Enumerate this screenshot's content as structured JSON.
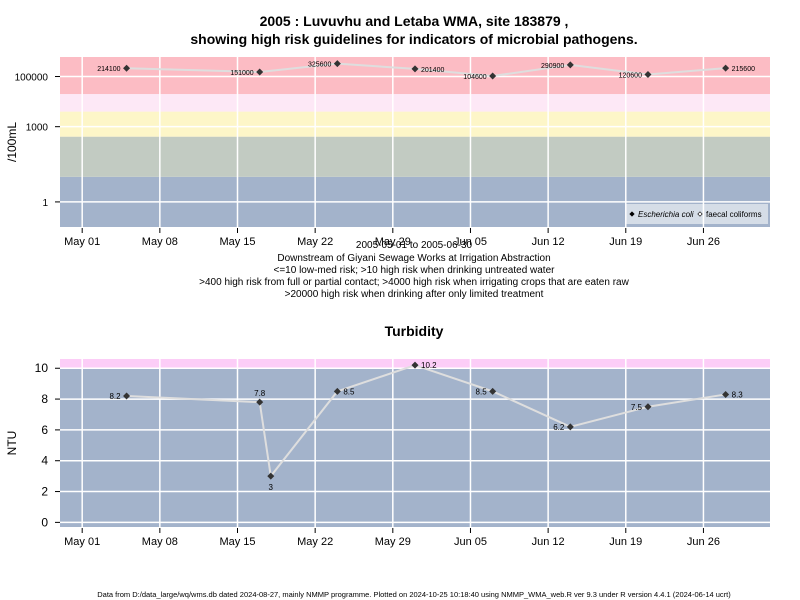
{
  "colors": {
    "band_low": "#a3b3cb",
    "band_sage": "#c2cbc2",
    "band_yellow": "#fdf6c8",
    "band_pink_light": "#fde8f6",
    "band_pink": "#fccdf7",
    "band_red": "#fcbcc4",
    "line": "#dedede",
    "marker": "#333333",
    "grid": "#ffffff"
  },
  "title": {
    "line1": "2005 : Luvuvhu and Letaba WMA, site 183879 ,",
    "line2": "showing high risk guidelines for indicators of microbial pathogens."
  },
  "subtitle_lines": [
    "2005-05-01 to 2005-06-30",
    "Downstream of Giyani Sewage Works at Irrigation Abstraction",
    "<=10 low-med risk; >10 high risk when drinking untreated water",
    ">400 high risk from full or partial contact; >4000 high risk when irrigating crops that are eaten raw",
    ">20000 high risk when drinking after only limited treatment"
  ],
  "footer": "Data from D:/data_large/wq/wms.db dated 2024-08-27, mainly NMMP programme. Plotted on 2024-10-25 10:18:40 using NMMP_WMA_web.R ver 9.3 under R version 4.4.1 (2024-06-14 ucrt)",
  "chart_data": [
    {
      "type": "line",
      "panel": "microbial",
      "ylabel": "/100mL",
      "y_scale": "log10",
      "ylim": [
        0.1,
        600000
      ],
      "xlim": [
        "2005-04-29",
        "2005-07-02"
      ],
      "x_ticks": [
        {
          "date": "2005-05-01",
          "label": "May 01"
        },
        {
          "date": "2005-05-08",
          "label": "May 08"
        },
        {
          "date": "2005-05-15",
          "label": "May 15"
        },
        {
          "date": "2005-05-22",
          "label": "May 22"
        },
        {
          "date": "2005-05-29",
          "label": "May 29"
        },
        {
          "date": "2005-06-05",
          "label": "Jun 05"
        },
        {
          "date": "2005-06-12",
          "label": "Jun 12"
        },
        {
          "date": "2005-06-19",
          "label": "Jun 19"
        },
        {
          "date": "2005-06-26",
          "label": "Jun 26"
        }
      ],
      "y_ticks": [
        {
          "value": 1,
          "label": "1"
        },
        {
          "value": 1000,
          "label": "1000"
        },
        {
          "value": 100000,
          "label": "100000"
        }
      ],
      "bands": [
        {
          "from": 0.1,
          "to": 10,
          "color_key": "band_low"
        },
        {
          "from": 10,
          "to": 400,
          "color_key": "band_sage"
        },
        {
          "from": 400,
          "to": 4000,
          "color_key": "band_yellow"
        },
        {
          "from": 4000,
          "to": 20000,
          "color_key": "band_pink_light"
        },
        {
          "from": 20000,
          "to": 600000,
          "color_key": "band_red"
        }
      ],
      "grid": true,
      "legend_position": "bottom-right",
      "legend": [
        "Escherichia coli",
        "faecal coliforms"
      ],
      "series": [
        {
          "name": "Escherichia coli",
          "marker": "filled-diamond",
          "x": [
            "2005-05-05",
            "2005-05-17",
            "2005-05-24",
            "2005-05-31",
            "2005-06-07",
            "2005-06-14",
            "2005-06-21",
            "2005-06-28"
          ],
          "values": [
            214100,
            151000,
            325600,
            201400,
            104600,
            290900,
            120600,
            215600
          ],
          "labels": [
            "214100",
            "151000",
            "325600",
            "201400",
            "104600",
            "290900",
            "120600",
            "215600"
          ],
          "label_side": [
            "left",
            "left",
            "left",
            "right",
            "left",
            "left",
            "left",
            "right"
          ]
        }
      ]
    },
    {
      "type": "line",
      "panel": "turbidity",
      "title": "Turbidity",
      "ylabel": "NTU",
      "ylim": [
        -0.3,
        10.6
      ],
      "xlim": [
        "2005-04-29",
        "2005-07-02"
      ],
      "x_ticks": [
        {
          "date": "2005-05-01",
          "label": "May 01"
        },
        {
          "date": "2005-05-08",
          "label": "May 08"
        },
        {
          "date": "2005-05-15",
          "label": "May 15"
        },
        {
          "date": "2005-05-22",
          "label": "May 22"
        },
        {
          "date": "2005-05-29",
          "label": "May 29"
        },
        {
          "date": "2005-06-05",
          "label": "Jun 05"
        },
        {
          "date": "2005-06-12",
          "label": "Jun 12"
        },
        {
          "date": "2005-06-19",
          "label": "Jun 19"
        },
        {
          "date": "2005-06-26",
          "label": "Jun 26"
        }
      ],
      "y_ticks": [
        {
          "value": 0,
          "label": "0"
        },
        {
          "value": 2,
          "label": "2"
        },
        {
          "value": 4,
          "label": "4"
        },
        {
          "value": 6,
          "label": "6"
        },
        {
          "value": 8,
          "label": "8"
        },
        {
          "value": 10,
          "label": "10"
        }
      ],
      "bands": [
        {
          "from": -0.3,
          "to": 10,
          "color_key": "band_low"
        },
        {
          "from": 10,
          "to": 10.6,
          "color_key": "band_pink"
        }
      ],
      "grid": true,
      "series": [
        {
          "marker": "filled-diamond",
          "x": [
            "2005-05-05",
            "2005-05-17",
            "2005-05-18",
            "2005-05-24",
            "2005-05-31",
            "2005-06-07",
            "2005-06-14",
            "2005-06-21",
            "2005-06-28"
          ],
          "values": [
            8.2,
            7.8,
            3,
            8.5,
            10.2,
            8.5,
            6.2,
            7.5,
            8.3
          ],
          "labels": [
            "8.2",
            "7.8",
            "3",
            "8.5",
            "10.2",
            "8.5",
            "6.2",
            "7.5",
            "8.3"
          ],
          "label_side": [
            "left",
            "above",
            "below",
            "right",
            "right",
            "left",
            "left",
            "left",
            "right"
          ]
        }
      ]
    }
  ]
}
